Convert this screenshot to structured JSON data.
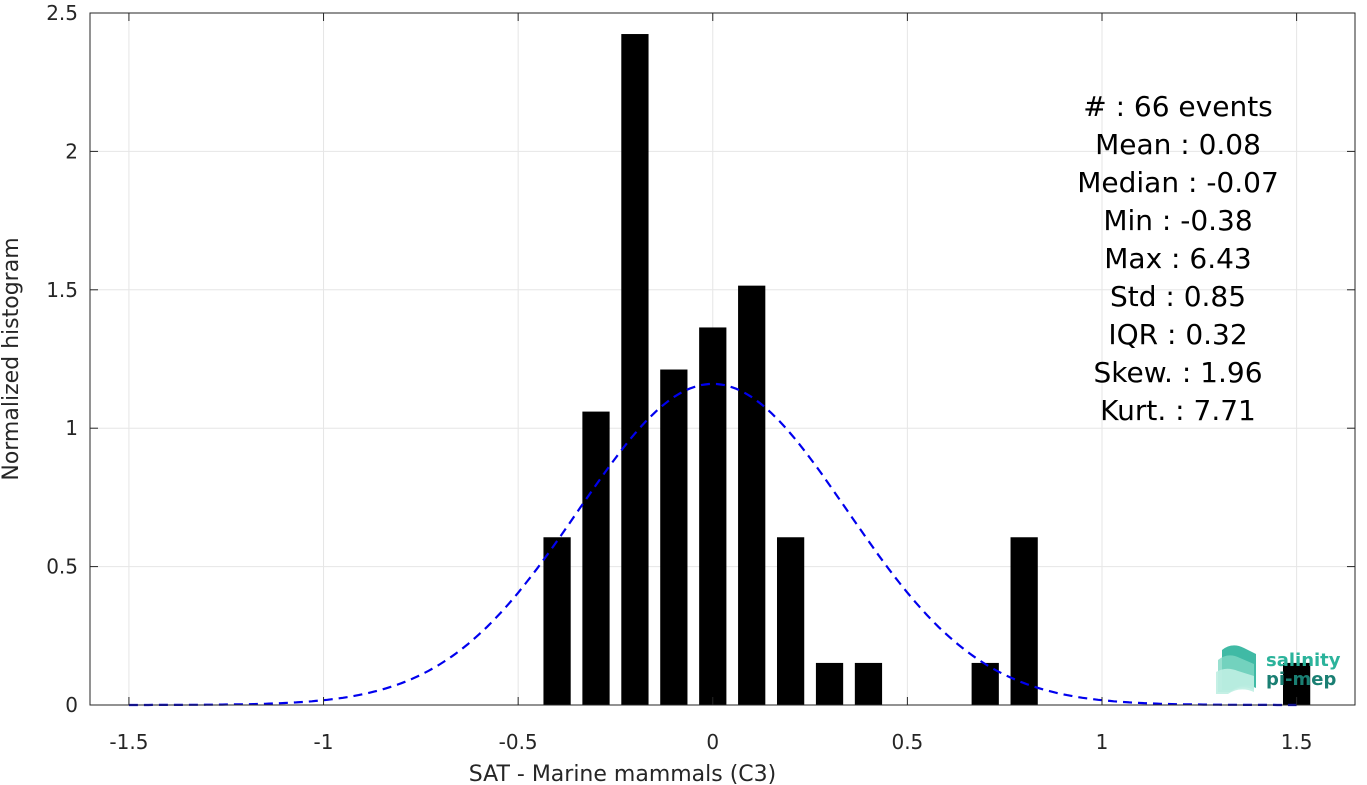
{
  "chart_data": {
    "type": "bar",
    "xlabel": "SAT - Marine mammals (C3)",
    "ylabel": "Normalized histogram",
    "xlim": [
      -1.5,
      1.5
    ],
    "ylim": [
      0,
      2.5
    ],
    "xticks": [
      "-1.5",
      "-1",
      "-0.5",
      "0",
      "0.5",
      "1",
      "1.5"
    ],
    "yticks": [
      "0",
      "0.5",
      "1",
      "1.5",
      "2",
      "2.5"
    ],
    "grid": true,
    "bar_width": 0.07,
    "bins": [
      {
        "x": -0.4,
        "value": 0.606
      },
      {
        "x": -0.3,
        "value": 1.06
      },
      {
        "x": -0.2,
        "value": 2.424
      },
      {
        "x": -0.1,
        "value": 1.212
      },
      {
        "x": 0.0,
        "value": 1.364
      },
      {
        "x": 0.1,
        "value": 1.515
      },
      {
        "x": 0.2,
        "value": 0.606
      },
      {
        "x": 0.3,
        "value": 0.152
      },
      {
        "x": 0.4,
        "value": 0.152
      },
      {
        "x": 0.7,
        "value": 0.152
      },
      {
        "x": 0.8,
        "value": 0.606
      },
      {
        "x": 1.5,
        "value": 0.152
      }
    ],
    "fit_curve": {
      "type": "normal",
      "mean": 0.0,
      "std": 0.345,
      "peak": 1.16,
      "color": "#0000ee",
      "style": "dashed"
    },
    "bar_color": "#000000",
    "stats": [
      {
        "label": "#",
        "sep": "  : ",
        "value": "66 events"
      },
      {
        "label": "Mean",
        "sep": " : ",
        "value": "0.08"
      },
      {
        "label": "Median",
        "sep": " : ",
        "value": "-0.07"
      },
      {
        "label": "Min",
        "sep": " : ",
        "value": "-0.38"
      },
      {
        "label": "Max",
        "sep": " : ",
        "value": "6.43"
      },
      {
        "label": "Std",
        "sep": " : ",
        "value": "0.85"
      },
      {
        "label": "IQR",
        "sep": " : ",
        "value": "0.32"
      },
      {
        "label": "Skew.",
        "sep": " : ",
        "value": "1.96"
      },
      {
        "label": "Kurt.",
        "sep": " : ",
        "value": "7.71"
      }
    ]
  },
  "logo": {
    "line1": "salinity",
    "line2": "pi-mep",
    "color1": "#2bb39b",
    "color2": "#1a7f73"
  }
}
